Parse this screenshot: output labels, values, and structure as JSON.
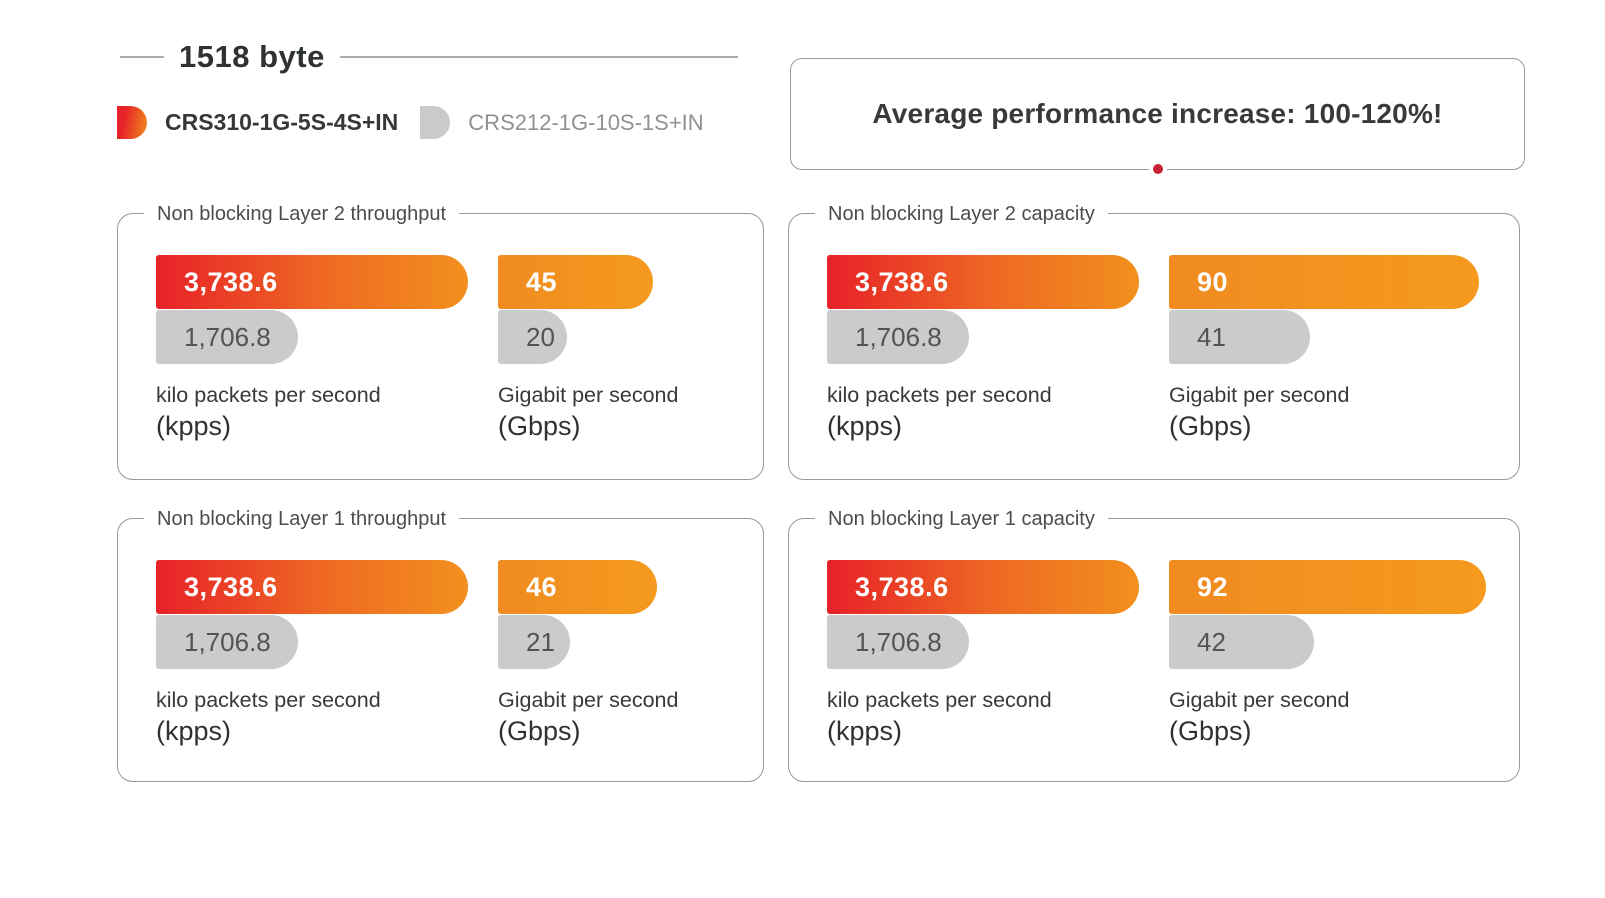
{
  "header": {
    "title": "1518 byte"
  },
  "legend": {
    "items": [
      {
        "name": "CRS310-1G-5S-4S+IN",
        "swatch": "red-orange-gradient"
      },
      {
        "name": "CRS212-1G-10S-1S+IN",
        "swatch": "gray"
      }
    ]
  },
  "banner": {
    "text": "Average performance increase: 100-120%!"
  },
  "colors": {
    "bar_red": "#e72128",
    "bar_orange": "#f2901e",
    "bar_gray": "#cbcbcb",
    "border_gray": "#97999b",
    "dot_red": "#c62231"
  },
  "chart_data": [
    {
      "type": "bar",
      "title": "Non blocking Layer 2 throughput",
      "legend_position": "page-top-left",
      "groups": [
        {
          "label": "kilo packets per second",
          "abbr": "(kpps)",
          "axis_max": 3738.6,
          "bars": [
            {
              "series": "CRS310-1G-5S-4S+IN",
              "value": 3738.6,
              "display": "3,738.6"
            },
            {
              "series": "CRS212-1G-10S-1S+IN",
              "value": 1706.8,
              "display": "1,706.8"
            }
          ]
        },
        {
          "label": "Gigabit per second",
          "abbr": "(Gbps)",
          "axis_max": 92,
          "bars": [
            {
              "series": "CRS310-1G-5S-4S+IN",
              "value": 45,
              "display": "45"
            },
            {
              "series": "CRS212-1G-10S-1S+IN",
              "value": 20,
              "display": "20"
            }
          ]
        }
      ]
    },
    {
      "type": "bar",
      "title": "Non blocking Layer 2 capacity",
      "groups": [
        {
          "label": "kilo packets per second",
          "abbr": "(kpps)",
          "axis_max": 3738.6,
          "bars": [
            {
              "series": "CRS310-1G-5S-4S+IN",
              "value": 3738.6,
              "display": "3,738.6"
            },
            {
              "series": "CRS212-1G-10S-1S+IN",
              "value": 1706.8,
              "display": "1,706.8"
            }
          ]
        },
        {
          "label": "Gigabit per second",
          "abbr": "(Gbps)",
          "axis_max": 92,
          "bars": [
            {
              "series": "CRS310-1G-5S-4S+IN",
              "value": 90,
              "display": "90"
            },
            {
              "series": "CRS212-1G-10S-1S+IN",
              "value": 41,
              "display": "41"
            }
          ]
        }
      ]
    },
    {
      "type": "bar",
      "title": "Non blocking Layer 1 throughput",
      "groups": [
        {
          "label": "kilo packets per second",
          "abbr": "(kpps)",
          "axis_max": 3738.6,
          "bars": [
            {
              "series": "CRS310-1G-5S-4S+IN",
              "value": 3738.6,
              "display": "3,738.6"
            },
            {
              "series": "CRS212-1G-10S-1S+IN",
              "value": 1706.8,
              "display": "1,706.8"
            }
          ]
        },
        {
          "label": "Gigabit per second",
          "abbr": "(Gbps)",
          "axis_max": 92,
          "bars": [
            {
              "series": "CRS310-1G-5S-4S+IN",
              "value": 46,
              "display": "46"
            },
            {
              "series": "CRS212-1G-10S-1S+IN",
              "value": 21,
              "display": "21"
            }
          ]
        }
      ]
    },
    {
      "type": "bar",
      "title": "Non blocking Layer 1 capacity",
      "groups": [
        {
          "label": "kilo packets per second",
          "abbr": "(kpps)",
          "axis_max": 3738.6,
          "bars": [
            {
              "series": "CRS310-1G-5S-4S+IN",
              "value": 3738.6,
              "display": "3,738.6"
            },
            {
              "series": "CRS212-1G-10S-1S+IN",
              "value": 1706.8,
              "display": "1,706.8"
            }
          ]
        },
        {
          "label": "Gigabit per second",
          "abbr": "(Gbps)",
          "axis_max": 92,
          "bars": [
            {
              "series": "CRS310-1G-5S-4S+IN",
              "value": 92,
              "display": "92"
            },
            {
              "series": "CRS212-1G-10S-1S+IN",
              "value": 42,
              "display": "42"
            }
          ]
        }
      ]
    }
  ]
}
